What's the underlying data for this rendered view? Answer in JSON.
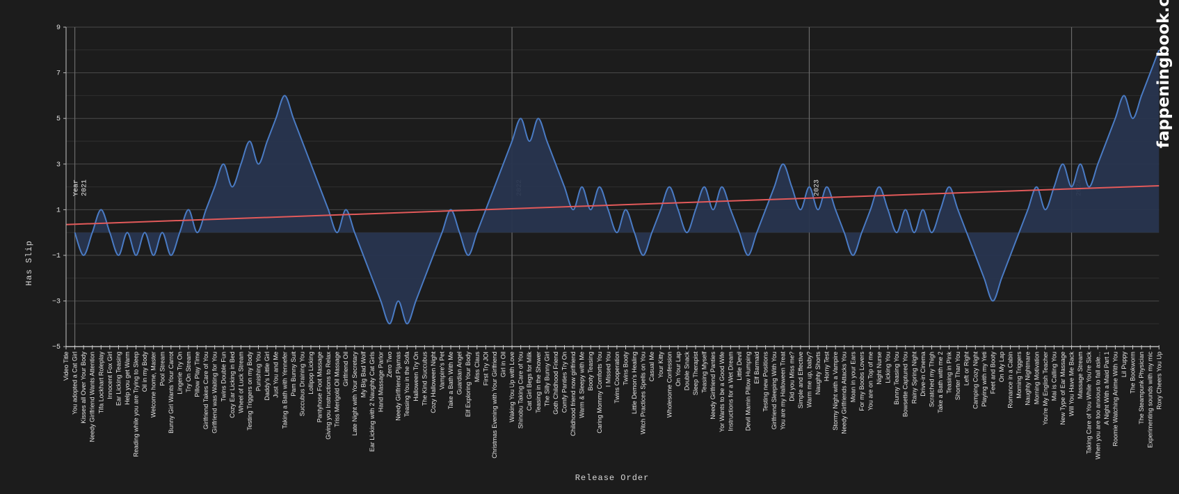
{
  "chart_data": {
    "type": "area",
    "xlabel": "Release Order",
    "ylabel": "Has Slip",
    "ylim": [
      -5,
      9
    ],
    "yticks": [
      9,
      7,
      5,
      3,
      1,
      -1,
      -3,
      -5
    ],
    "grid": true,
    "watermark": "fappeningbook.com",
    "colors": {
      "background": "#1c1c1c",
      "line": "#4a7bc4",
      "fill": "#28354f",
      "trend": "#e35a5a",
      "grid": "#3a3a3a"
    },
    "categories": [
      "Video Title",
      "You adopted a Cat Girl",
      "Kisses all Over Your Body",
      "Needy Girlfriend Wants Attention",
      "Tifa Lockhart Roleplay",
      "Innocent Fox Girl",
      "Ear Licking Teasing",
      "Help you get Warm",
      "Reading while you are Trying to Sleep",
      "Oil in my Body",
      "Welcome home, Master",
      "Pool Stream",
      "Bunny Girl Wants Your Carrot",
      "Lingerie Try On",
      "Try On Stream",
      "Pillow Play Time",
      "Girlfriend Takes Care of You",
      "Girlfriend was Waiting for You",
      "Twins Double Fun",
      "Cozy Ear Licking in Bed",
      "Wheel of Luck Stream",
      "Testing Triggers on my Body",
      "Punishing You",
      "Daddy's Little Girl",
      "Just You and Me",
      "Taking a Bath with Yennefer",
      "Pam Bunny Suit",
      "Succubus Draining You",
      "Lollipop Licking",
      "Pantyhose Foot Massage",
      "Giving you Instructions to Relax",
      "Triss Merigold Oil Massage",
      "Girlfriend Oil",
      "Late Night with Your Secretary",
      "My Big Bad Wolf",
      "Ear Licking with 2 Naughty Cat Girls",
      "Hand Massage Parlor",
      "Zero Two",
      "Needy Girlfriend Pijamas",
      "Teasing You in the Sofa",
      "Halloween Try On",
      "The Kind Succubus",
      "Cozy Halloween Night",
      "Vampire's Pet",
      "Take a Bath With Me",
      "Guardian Angel",
      "Elf Exploring Your Body",
      "Miss Claus",
      "First Try JOI",
      "Christmas Evening with Your Girlfriend",
      "Girl in Oil",
      "Waking You Up with Love",
      "Shinobu Taking Care of You",
      "Cat Girl Begs for Milk",
      "Teasing in the Shower",
      "The Silly Bunny Girl",
      "Goth Childhood Friend",
      "Comfy Panties Try On",
      "Childhood friend now girlfriend",
      "Warm & Sleepy with Me",
      "Booty Teasing",
      "Caring Mommy Comforts You",
      "I Missed You",
      "Twins Cooperation",
      "Twins Booty",
      "Little Demon's Healing",
      "Witch Practices Spells on You",
      "Casual Me",
      "Your Kitty",
      "Wholesome Confession",
      "On Your Lap",
      "Double Snack",
      "Sleep Therapist",
      "Teasing Myself",
      "Needy Girlfriend Panties",
      "Yor Wants to be a Good Wife",
      "Instructions for a Wet Dream",
      "Little Devil",
      "Devil Mamin Pillow Humping",
      "Elf Barmaid",
      "Testing new Positions",
      "Girlfriend Sleeping With You",
      "You are my Halloween Treat",
      "Did you Miss me?",
      "Simple and Effective",
      "Warm me up, baby?",
      "Naughty Shorts",
      "Horny Test",
      "Stormy Night with a Vampire",
      "Needy Girlfriends Attacks You",
      "Moan in your Ears",
      "For my Boobs Lovers",
      "You are on Top of me",
      "Night Nurse",
      "Licking You",
      "Bunny Teasing You",
      "Bowsette Captured You",
      "Rainy Spring Night",
      "Drive-in Cinema",
      "Scratched my Thigh",
      "Take a Bath with me 2",
      "Teasing in Pink",
      "Shorter Than You",
      "Left or Right",
      "Camping Cozy Night",
      "Playing with my Yeti",
      "Feet and Booty",
      "On My Lap",
      "Romance in a Cabin",
      "Morning Triggers",
      "Naughty Nightmare",
      "Morning Motivation",
      "You're My English Teacher",
      "Mai is Calling You",
      "New Type of Ear Massage",
      "Will You Have Me Back",
      "Massage Stream",
      "Taking Care of You While You're Sick",
      "When you are too anxious to fall asle...",
      "A Night With a Maid Part 1",
      "Roomie Watching Anime With You",
      "Lil Puppy",
      "The Bookworm",
      "The Steampunk Physician",
      "Experimenting sounds with my mic",
      "Roxy Cheers You Up"
    ],
    "series": [
      {
        "values": [
          null,
          0,
          -1,
          0,
          1,
          0,
          -1,
          0,
          -1,
          0,
          -1,
          0,
          -1,
          0,
          1,
          0,
          1,
          2,
          3,
          2,
          3,
          4,
          3,
          4,
          5,
          6,
          5,
          4,
          3,
          2,
          1,
          0,
          1,
          0,
          -1,
          -2,
          -3,
          -4,
          -3,
          -4,
          -3,
          -2,
          -1,
          0,
          1,
          0,
          -1,
          0,
          1,
          2,
          3,
          4,
          5,
          4,
          5,
          4,
          3,
          2,
          1,
          2,
          1,
          2,
          1,
          0,
          1,
          0,
          -1,
          0,
          1,
          2,
          1,
          0,
          1,
          2,
          1,
          2,
          1,
          0,
          -1,
          0,
          1,
          2,
          3,
          2,
          1,
          2,
          1,
          2,
          1,
          0,
          -1,
          0,
          1,
          2,
          1,
          0,
          1,
          0,
          1,
          0,
          1,
          2,
          1,
          0,
          -1,
          -2,
          -3,
          -2,
          -1,
          0,
          1,
          2,
          1,
          2,
          3,
          2,
          3,
          2,
          3,
          4,
          5,
          6,
          5,
          6,
          7,
          8
        ]
      }
    ],
    "trendline": {
      "start": 0.35,
      "end": 2.05
    },
    "year_markers": {
      "prefix": "Year",
      "items": [
        {
          "category": "You adopted a Cat Girl",
          "label": "2021"
        },
        {
          "category": "Waking You Up with Love",
          "label": "2022"
        },
        {
          "category": "Warm me up, baby?",
          "label": "2023"
        },
        {
          "category": "Will You Have Me Back",
          "label": "2024"
        }
      ]
    }
  }
}
